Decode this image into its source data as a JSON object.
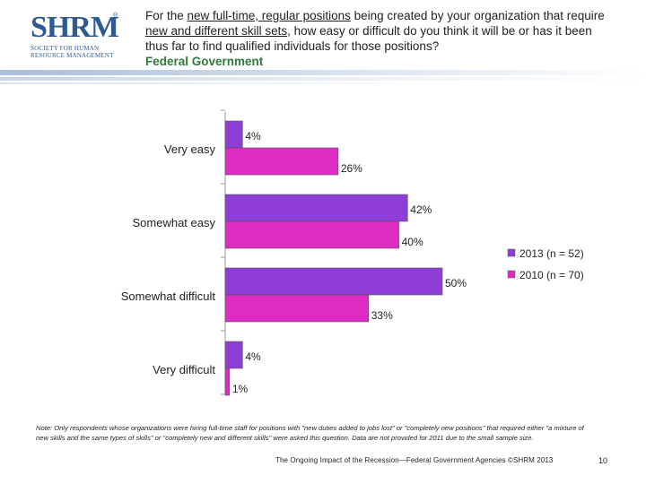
{
  "header": {
    "logo_mark": "SHRM",
    "logo_registered": "®",
    "logo_lines": [
      "SOCIETY FOR HUMAN",
      "RESOURCE MANAGEMENT"
    ],
    "question_parts": [
      {
        "text": "For the ",
        "underline": false
      },
      {
        "text": "new full-time, regular positions",
        "underline": true
      },
      {
        "text": " being created by your organization that require ",
        "underline": false
      },
      {
        "text": "new and different skill sets",
        "underline": true
      },
      {
        "text": ", how easy or difficult do you think it will be or has it been thus far to find qualified individuals for those positions?",
        "underline": false
      }
    ],
    "subtitle": "Federal Government"
  },
  "chart_data": {
    "type": "bar",
    "orientation": "horizontal",
    "categories": [
      "Very easy",
      "Somewhat easy",
      "Somewhat difficult",
      "Very difficult"
    ],
    "series": [
      {
        "name": "2013 (n = 52)",
        "color": "#8e3ed6",
        "values": [
          4,
          42,
          50,
          4
        ]
      },
      {
        "name": "2010 (n = 70)",
        "color": "#dd2bc4",
        "values": [
          26,
          40,
          33,
          1
        ]
      }
    ],
    "value_suffix": "%",
    "xlim": [
      0,
      100
    ],
    "legend_position": "right"
  },
  "note": "Note: Only respondents whose organizations were hiring full-time staff for positions with \"new duties added to jobs lost\" or \"completely new positions\" that required either \"a mixture of new skills and the same types of skills\" or \"completely new and different skills\" were asked this question. Data are not provided for 2011 due to the small sample size.",
  "footer": {
    "text": "The Ongoing Impact of the Recession—Federal Government Agencies ©SHRM 2013",
    "page": "10"
  }
}
